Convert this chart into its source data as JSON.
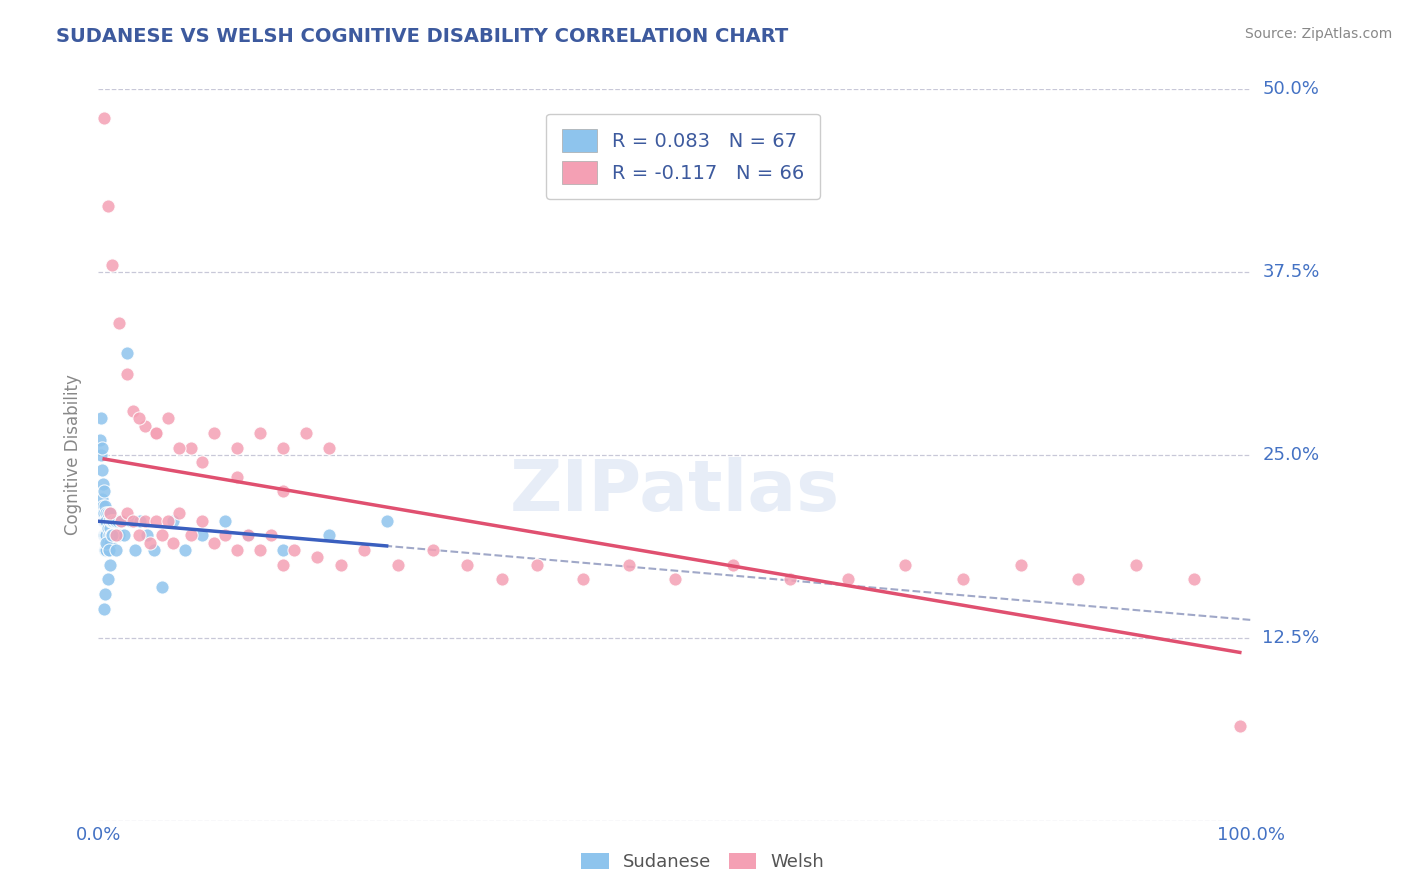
{
  "title": "SUDANESE VS WELSH COGNITIVE DISABILITY CORRELATION CHART",
  "source": "Source: ZipAtlas.com",
  "ylabel": "Cognitive Disability",
  "xlim": [
    0,
    1.0
  ],
  "ylim": [
    0,
    0.5
  ],
  "yticks": [
    0.0,
    0.125,
    0.25,
    0.375,
    0.5
  ],
  "ytick_labels": [
    "",
    "12.5%",
    "25.0%",
    "37.5%",
    "50.0%"
  ],
  "xtick_labels": [
    "0.0%",
    "100.0%"
  ],
  "sudanese_color": "#8EC4ED",
  "welsh_color": "#F4A0B4",
  "sudanese_line_color": "#3A5FBF",
  "welsh_line_color": "#E05070",
  "dashed_line_color": "#A0A8C8",
  "background_color": "#FFFFFF",
  "grid_color": "#C8C8D8",
  "title_color": "#3D5A9E",
  "axis_label_color": "#4472C4",
  "tick_label_color": "#4472C4",
  "legend_label_1": "R = 0.083   N = 67",
  "legend_label_2": "R = -0.117   N = 66",
  "sudanese_x": [
    0.001,
    0.002,
    0.002,
    0.003,
    0.003,
    0.003,
    0.004,
    0.004,
    0.004,
    0.005,
    0.005,
    0.005,
    0.005,
    0.006,
    0.006,
    0.006,
    0.006,
    0.007,
    0.007,
    0.007,
    0.007,
    0.008,
    0.008,
    0.008,
    0.009,
    0.009,
    0.009,
    0.01,
    0.01,
    0.01,
    0.011,
    0.011,
    0.012,
    0.012,
    0.013,
    0.013,
    0.014,
    0.014,
    0.015,
    0.016,
    0.017,
    0.018,
    0.02,
    0.022,
    0.025,
    0.028,
    0.032,
    0.036,
    0.042,
    0.048,
    0.055,
    0.065,
    0.075,
    0.09,
    0.11,
    0.13,
    0.16,
    0.2,
    0.25,
    0.01,
    0.008,
    0.006,
    0.005,
    0.007,
    0.009,
    0.012,
    0.015
  ],
  "sudanese_y": [
    0.26,
    0.275,
    0.25,
    0.255,
    0.24,
    0.22,
    0.23,
    0.215,
    0.21,
    0.225,
    0.21,
    0.205,
    0.195,
    0.215,
    0.205,
    0.195,
    0.185,
    0.21,
    0.205,
    0.195,
    0.185,
    0.21,
    0.2,
    0.19,
    0.205,
    0.195,
    0.185,
    0.21,
    0.2,
    0.19,
    0.205,
    0.195,
    0.205,
    0.195,
    0.205,
    0.195,
    0.205,
    0.195,
    0.205,
    0.195,
    0.205,
    0.195,
    0.205,
    0.195,
    0.32,
    0.205,
    0.185,
    0.205,
    0.195,
    0.185,
    0.16,
    0.205,
    0.185,
    0.195,
    0.205,
    0.195,
    0.185,
    0.195,
    0.205,
    0.175,
    0.165,
    0.155,
    0.145,
    0.19,
    0.185,
    0.195,
    0.185
  ],
  "welsh_x": [
    0.01,
    0.015,
    0.02,
    0.025,
    0.03,
    0.035,
    0.04,
    0.045,
    0.05,
    0.055,
    0.06,
    0.065,
    0.07,
    0.08,
    0.09,
    0.1,
    0.11,
    0.12,
    0.13,
    0.14,
    0.15,
    0.16,
    0.17,
    0.19,
    0.21,
    0.23,
    0.26,
    0.29,
    0.32,
    0.35,
    0.38,
    0.42,
    0.46,
    0.5,
    0.55,
    0.6,
    0.65,
    0.7,
    0.75,
    0.8,
    0.85,
    0.9,
    0.95,
    0.99,
    0.03,
    0.04,
    0.05,
    0.06,
    0.08,
    0.1,
    0.12,
    0.14,
    0.16,
    0.18,
    0.2,
    0.005,
    0.008,
    0.012,
    0.018,
    0.025,
    0.035,
    0.05,
    0.07,
    0.09,
    0.12,
    0.16
  ],
  "welsh_y": [
    0.21,
    0.195,
    0.205,
    0.21,
    0.205,
    0.195,
    0.205,
    0.19,
    0.205,
    0.195,
    0.205,
    0.19,
    0.21,
    0.195,
    0.205,
    0.19,
    0.195,
    0.185,
    0.195,
    0.185,
    0.195,
    0.175,
    0.185,
    0.18,
    0.175,
    0.185,
    0.175,
    0.185,
    0.175,
    0.165,
    0.175,
    0.165,
    0.175,
    0.165,
    0.175,
    0.165,
    0.165,
    0.175,
    0.165,
    0.175,
    0.165,
    0.175,
    0.165,
    0.065,
    0.28,
    0.27,
    0.265,
    0.275,
    0.255,
    0.265,
    0.255,
    0.265,
    0.255,
    0.265,
    0.255,
    0.48,
    0.42,
    0.38,
    0.34,
    0.305,
    0.275,
    0.265,
    0.255,
    0.245,
    0.235,
    0.225
  ]
}
